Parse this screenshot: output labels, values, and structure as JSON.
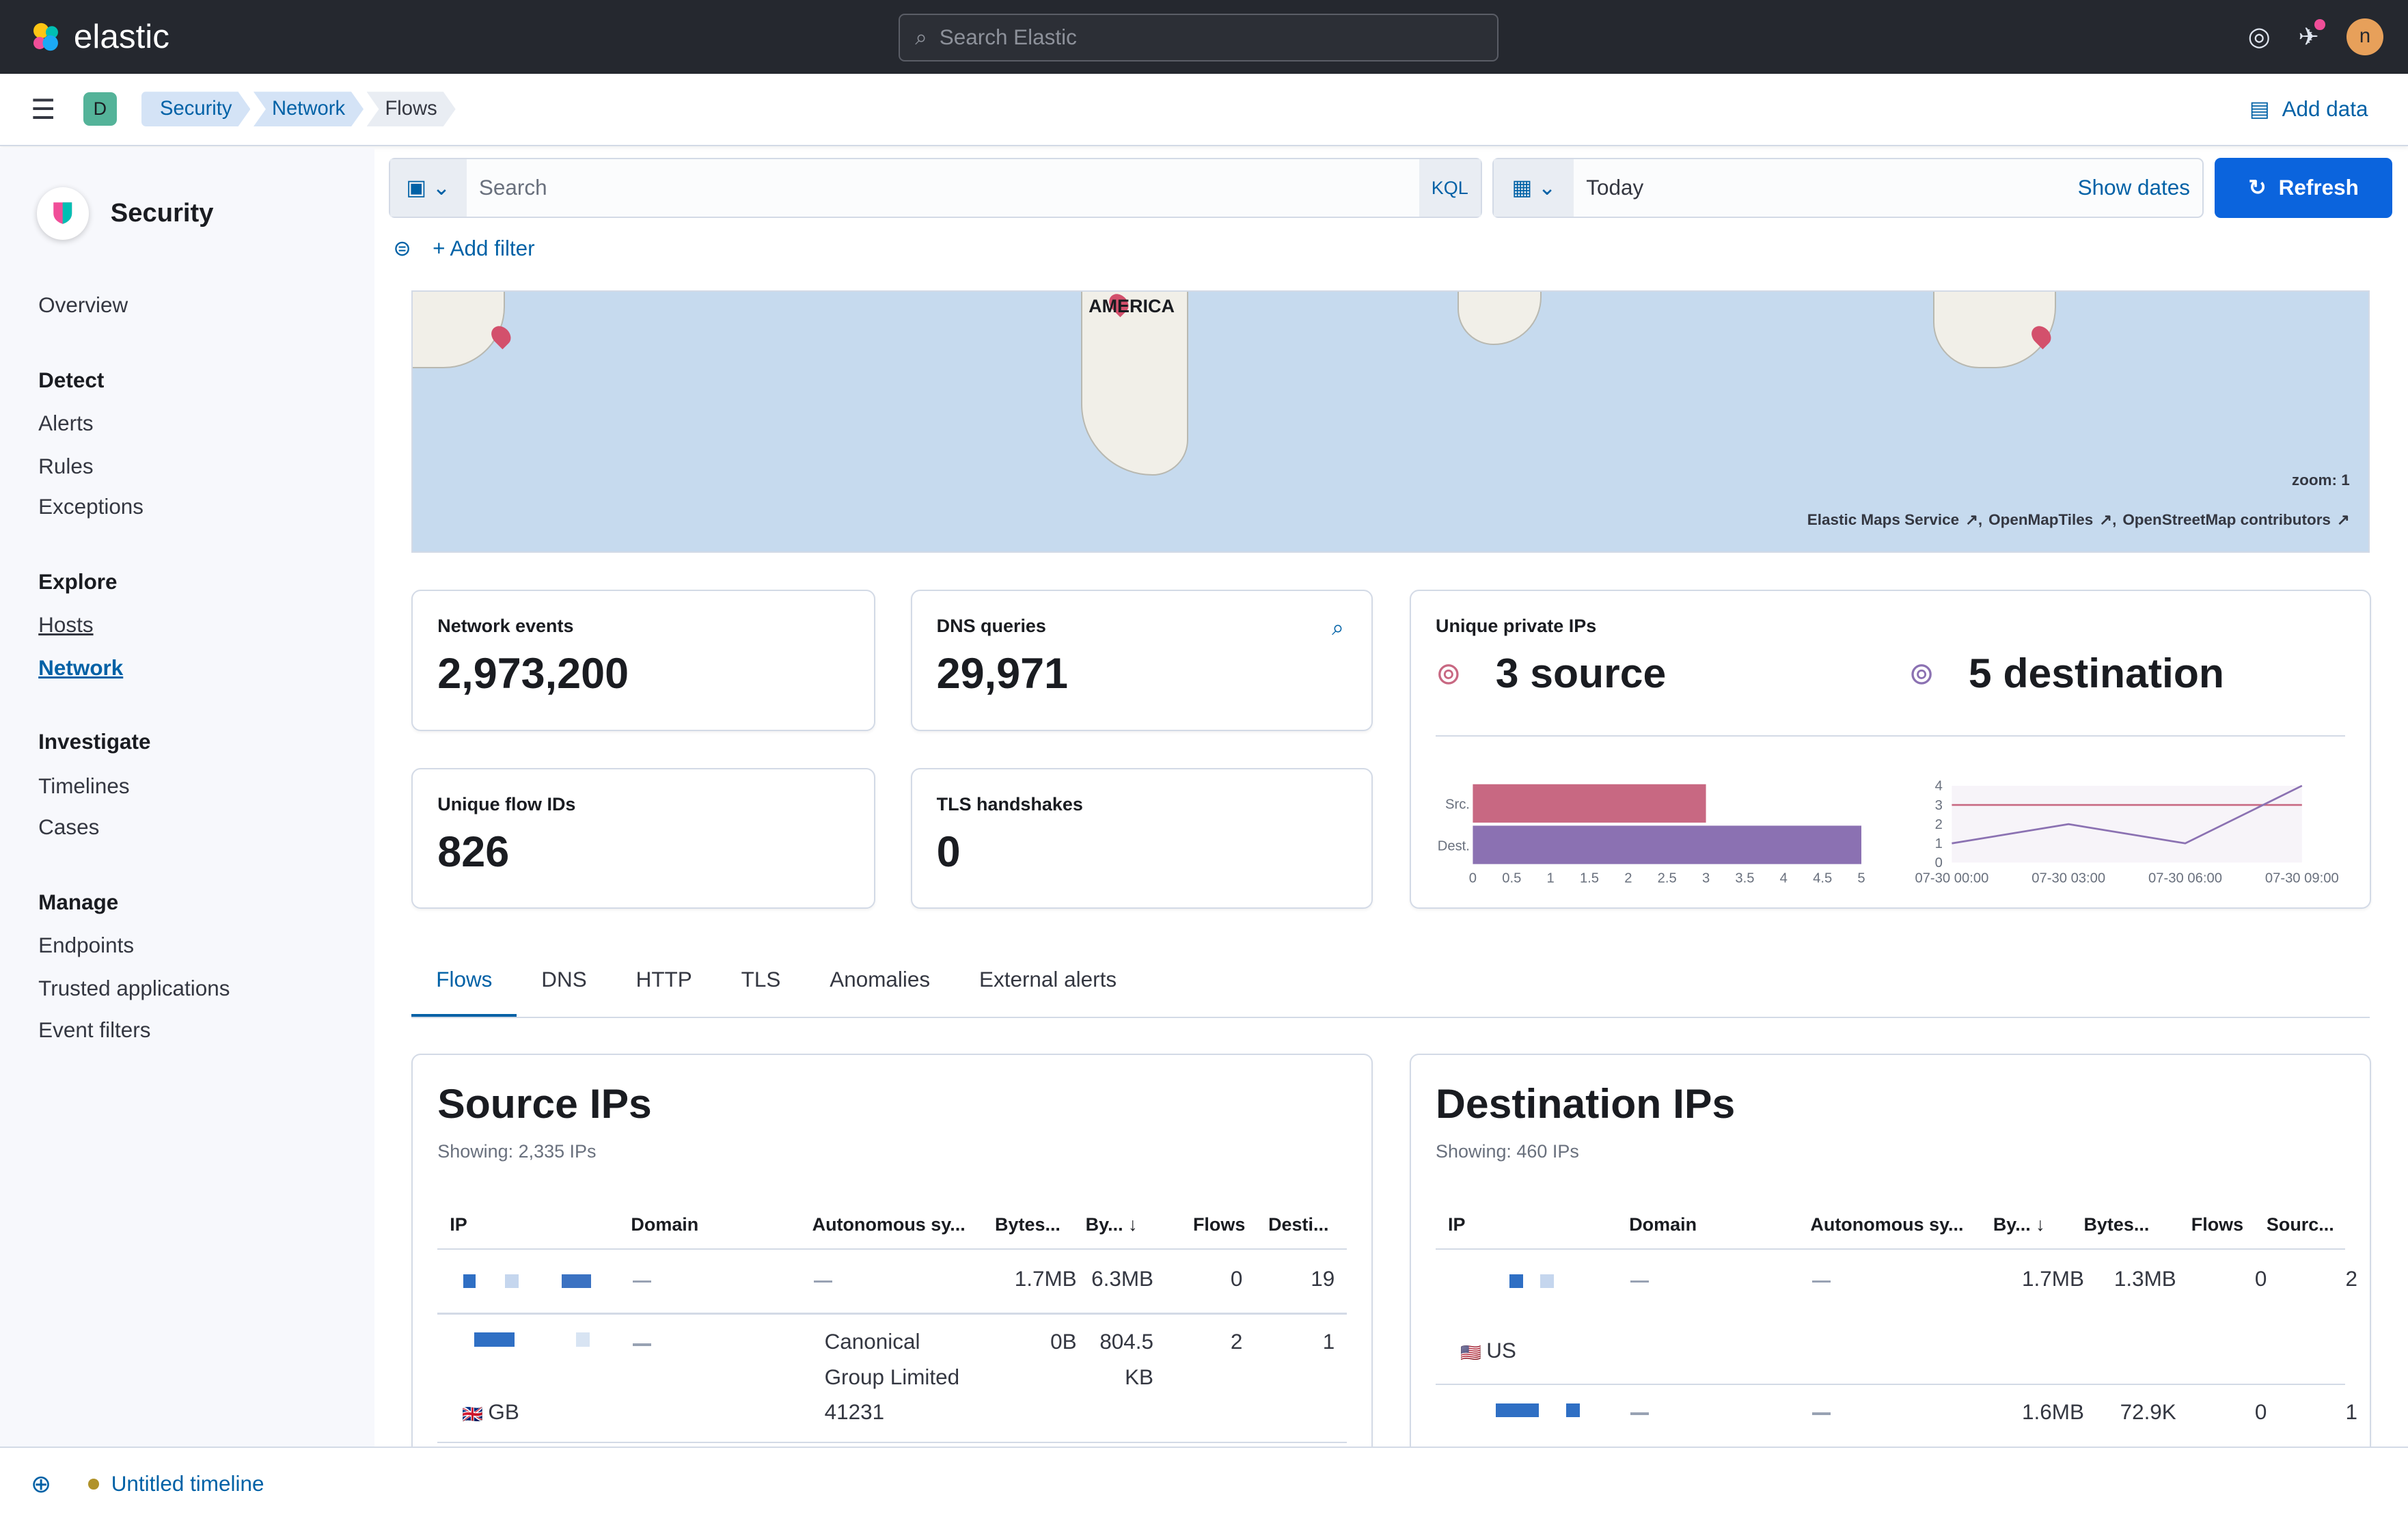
{
  "header": {
    "brand": "elastic",
    "search_placeholder": "Search Elastic",
    "avatar": "n"
  },
  "subheader": {
    "space": "D",
    "breadcrumbs": [
      "Security",
      "Network",
      "Flows"
    ],
    "add_data": "Add data"
  },
  "sidebar": {
    "title": "Security",
    "items": [
      {
        "label": "Overview",
        "type": "item"
      },
      {
        "label": "Detect",
        "type": "heading"
      },
      {
        "label": "Alerts",
        "type": "item"
      },
      {
        "label": "Rules",
        "type": "item"
      },
      {
        "label": "Exceptions",
        "type": "item"
      },
      {
        "label": "Explore",
        "type": "heading"
      },
      {
        "label": "Hosts",
        "type": "link"
      },
      {
        "label": "Network",
        "type": "active"
      },
      {
        "label": "Investigate",
        "type": "heading"
      },
      {
        "label": "Timelines",
        "type": "item"
      },
      {
        "label": "Cases",
        "type": "item"
      },
      {
        "label": "Manage",
        "type": "heading"
      },
      {
        "label": "Endpoints",
        "type": "item"
      },
      {
        "label": "Trusted applications",
        "type": "item"
      },
      {
        "label": "Event filters",
        "type": "item"
      }
    ]
  },
  "query": {
    "placeholder": "Search",
    "language": "KQL",
    "date": "Today",
    "show_dates": "Show dates",
    "refresh": "Refresh",
    "add_filter": "+ Add filter"
  },
  "map": {
    "label": "AMERICA",
    "zoom": "zoom: 1",
    "attribution": [
      "Elastic Maps Service",
      "OpenMapTiles",
      "OpenStreetMap contributors"
    ]
  },
  "stats": {
    "network_events": {
      "label": "Network events",
      "value": "2,973,200"
    },
    "dns_queries": {
      "label": "DNS queries",
      "value": "29,971"
    },
    "unique_flow_ids": {
      "label": "Unique flow IDs",
      "value": "826"
    },
    "tls_handshakes": {
      "label": "TLS handshakes",
      "value": "0"
    },
    "unique_private_ips": {
      "label": "Unique private IPs",
      "source": "3 source",
      "destination": "5 destination"
    }
  },
  "chart_data": [
    {
      "type": "bar",
      "orientation": "horizontal",
      "categories": [
        "Src.",
        "Dest."
      ],
      "values": [
        3,
        5
      ],
      "colors": [
        "#c86882",
        "#8b71b2"
      ],
      "xlim": [
        0,
        5
      ],
      "xticks": [
        "0",
        "0.5",
        "1",
        "1.5",
        "2",
        "2.5",
        "3",
        "3.5",
        "4",
        "4.5",
        "5"
      ]
    },
    {
      "type": "line",
      "x": [
        "07-30 00:00",
        "07-30 03:00",
        "07-30 06:00",
        "07-30 09:00"
      ],
      "series": [
        {
          "values": [
            3,
            3,
            3,
            3
          ],
          "color": "#c86882"
        },
        {
          "values": [
            1,
            2,
            1,
            4
          ],
          "color": "#8b71b2"
        }
      ],
      "ylim": [
        0,
        4
      ],
      "yticks": [
        "0",
        "1",
        "2",
        "3",
        "4"
      ]
    }
  ],
  "tabs": [
    "Flows",
    "DNS",
    "HTTP",
    "TLS",
    "Anomalies",
    "External alerts"
  ],
  "source_ips": {
    "title": "Source IPs",
    "showing": "Showing: 2,335 IPs",
    "columns": [
      "IP",
      "Domain",
      "Autonomous sy...",
      "Bytes...",
      "By... ↓",
      "Flows",
      "Desti..."
    ],
    "rows": [
      {
        "domain": "—",
        "as": [
          "—"
        ],
        "bytes_in": "1.7MB",
        "bytes_out": "6.3MB",
        "flows": "0",
        "dest": "19",
        "country": ""
      },
      {
        "domain": "—",
        "as": [
          "Canonical",
          "Group Limited",
          "41231"
        ],
        "bytes_in": "0B",
        "bytes_out": [
          "804.5",
          "KB"
        ],
        "flows": "2",
        "dest": "1",
        "country": "GB"
      }
    ]
  },
  "destination_ips": {
    "title": "Destination IPs",
    "showing": "Showing: 460 IPs",
    "columns": [
      "IP",
      "Domain",
      "Autonomous sy...",
      "By... ↓",
      "Bytes...",
      "Flows",
      "Sourc..."
    ],
    "rows": [
      {
        "domain": "—",
        "as": "—",
        "bytes_in": "1.7MB",
        "bytes_out": "1.3MB",
        "flows": "0",
        "src": "2",
        "country": "US"
      },
      {
        "domain": "—",
        "as": "—",
        "bytes_in": "1.6MB",
        "bytes_out": "72.9K",
        "flows": "0",
        "src": "1"
      }
    ]
  },
  "timeline": {
    "label": "Untitled timeline"
  },
  "colors": {
    "accent": "#0b64dd",
    "link": "#0061a6",
    "header": "#25282f",
    "src": "#c86882",
    "dest": "#8b71b2"
  }
}
